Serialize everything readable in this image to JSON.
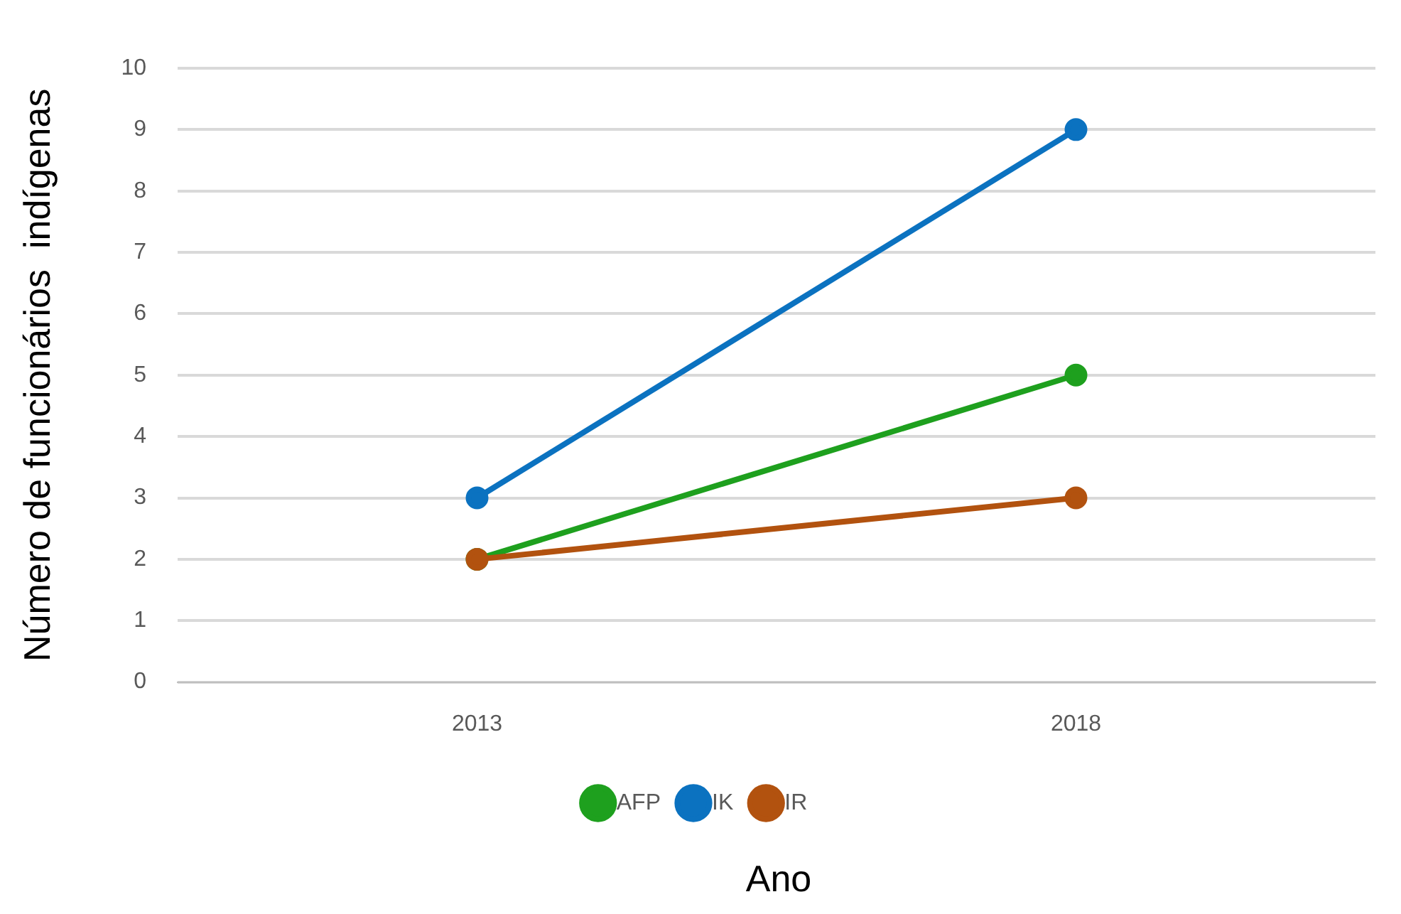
{
  "chart_data": {
    "type": "line",
    "xlabel": "Ano",
    "ylabel": "Número de funcionários  indígenas",
    "categories": [
      "2013",
      "2018"
    ],
    "series": [
      {
        "name": "AFP",
        "color": "#1ea01e",
        "values": [
          2,
          5
        ]
      },
      {
        "name": "IK",
        "color": "#0b72c0",
        "values": [
          3,
          9
        ]
      },
      {
        "name": "IR",
        "color": "#b2520f",
        "values": [
          2,
          3
        ]
      }
    ],
    "ylim": [
      0,
      10
    ],
    "yticks": [
      0,
      1,
      2,
      3,
      4,
      5,
      6,
      7,
      8,
      9,
      10
    ],
    "grid": "y",
    "legend": "bottom",
    "marker": "circle",
    "line_style": "solid"
  }
}
